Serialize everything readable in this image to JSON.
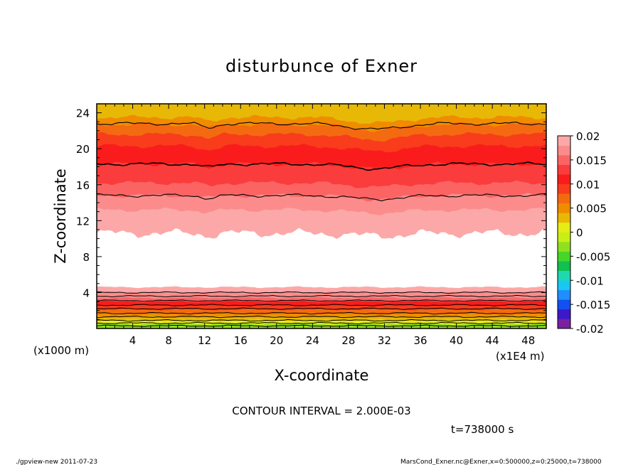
{
  "chart_data": {
    "type": "heatmap",
    "title": "disturbunce of Exner",
    "xlabel": "X-coordinate",
    "ylabel": "Z-coordinate",
    "x_unit_note": "(x1E4 m)",
    "y_unit_note": "(x1000 m)",
    "xlim": [
      0,
      50
    ],
    "ylim": [
      0,
      25
    ],
    "x_ticks": [
      "4",
      "8",
      "12",
      "16",
      "20",
      "24",
      "28",
      "32",
      "36",
      "40",
      "44",
      "48"
    ],
    "y_ticks": [
      "4",
      "8",
      "12",
      "16",
      "20",
      "24"
    ],
    "colorbar": {
      "labels": [
        "0.02",
        "0.015",
        "0.01",
        "0.005",
        "0",
        "-0.005",
        "-0.01",
        "-0.015",
        "-0.02"
      ],
      "range": [
        -0.02,
        0.02
      ],
      "colors": [
        "#7a1fa2",
        "#3c19c8",
        "#1450f0",
        "#1f8fff",
        "#19c8f0",
        "#20d8b0",
        "#10c050",
        "#46d628",
        "#90e020",
        "#c8ee18",
        "#e6ec14",
        "#e8b806",
        "#f08c00",
        "#f46a10",
        "#f83c1c",
        "#fa1c1c",
        "#fb3c3c",
        "#fc6464",
        "#fc8c8c",
        "#fca8a8"
      ]
    },
    "contour_interval": "CONTOUR INTERVAL = 2.000E-03",
    "time_label": "t=738000 s",
    "white_band_z": [
      4.6,
      10.2
    ],
    "upper_levels": [
      {
        "z": 10.6,
        "color": "#fca8a8"
      },
      {
        "z": 13.2,
        "color": "#fc8c8c"
      },
      {
        "z": 14.8,
        "color": "#fc6464"
      },
      {
        "z": 16.2,
        "color": "#fb3c3c"
      },
      {
        "z": 18.3,
        "color": "#fa1c1c"
      },
      {
        "z": 20.3,
        "color": "#f83c1c"
      },
      {
        "z": 21.6,
        "color": "#f46a10"
      },
      {
        "z": 22.7,
        "color": "#f08c00"
      },
      {
        "z": 23.5,
        "color": "#e8b806"
      }
    ],
    "upper_contours": [
      14.8,
      18.3,
      22.8
    ],
    "lower_levels": [
      {
        "z": 4.6,
        "color": "#fca8a8"
      },
      {
        "z": 4.0,
        "color": "#fc8c8c"
      },
      {
        "z": 3.4,
        "color": "#fc6464"
      },
      {
        "z": 3.0,
        "color": "#fa1c1c"
      },
      {
        "z": 2.6,
        "color": "#f83c1c"
      },
      {
        "z": 2.1,
        "color": "#f46a10"
      },
      {
        "z": 1.7,
        "color": "#f08c00"
      },
      {
        "z": 1.3,
        "color": "#e8b806"
      },
      {
        "z": 0.9,
        "color": "#e6ec14"
      },
      {
        "z": 0.5,
        "color": "#90e020"
      }
    ],
    "lower_contours": [
      4.0,
      3.6,
      3.1,
      2.6,
      2.2,
      1.7,
      1.3,
      0.9,
      0.6,
      0.3
    ]
  },
  "footer": {
    "left": "./gpview-new   2011-07-23",
    "right": "MarsCond_Exner.nc@Exner,x=0:500000,z=0:25000,t=738000"
  }
}
